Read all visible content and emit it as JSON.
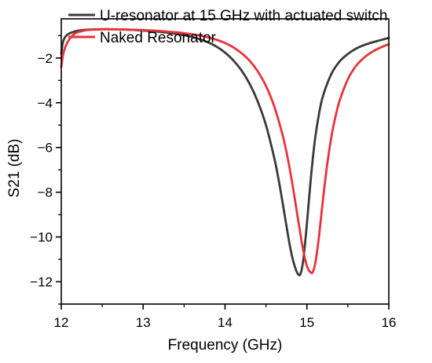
{
  "chart_data": {
    "type": "line",
    "title": "",
    "xlabel": "Frequency (GHz)",
    "ylabel": "S21 (dB)",
    "xlim": [
      12,
      16
    ],
    "ylim": [
      -13,
      -0.25
    ],
    "xticks": [
      12,
      13,
      14,
      15,
      16
    ],
    "xtick_labels": [
      "12",
      "13",
      "14",
      "15",
      "16"
    ],
    "yticks": [
      -2,
      -4,
      -6,
      -8,
      -10,
      -12
    ],
    "ytick_labels": [
      "−2",
      "−4",
      "−6",
      "−8",
      "−10",
      "−12"
    ],
    "grid": false,
    "legend_position": "top-right",
    "series": [
      {
        "name": "U-resonator at 15 GHz with actuated switch",
        "color": "#3a3a3a",
        "x": [
          12.0,
          12.02,
          12.05,
          12.1,
          12.2,
          12.3,
          12.4,
          12.5,
          12.6,
          12.7,
          12.8,
          12.9,
          13.0,
          13.1,
          13.2,
          13.3,
          13.4,
          13.5,
          13.6,
          13.7,
          13.8,
          13.9,
          14.0,
          14.1,
          14.2,
          14.3,
          14.4,
          14.5,
          14.6,
          14.65,
          14.7,
          14.75,
          14.8,
          14.85,
          14.9,
          14.93,
          14.96,
          15.0,
          15.05,
          15.1,
          15.15,
          15.2,
          15.3,
          15.4,
          15.5,
          15.6,
          15.7,
          15.8,
          15.9,
          16.0
        ],
        "y": [
          -1.8,
          -1.3,
          -1.05,
          -0.9,
          -0.78,
          -0.74,
          -0.72,
          -0.71,
          -0.71,
          -0.72,
          -0.73,
          -0.75,
          -0.77,
          -0.8,
          -0.83,
          -0.87,
          -0.92,
          -0.98,
          -1.06,
          -1.17,
          -1.31,
          -1.5,
          -1.76,
          -2.1,
          -2.55,
          -3.15,
          -3.95,
          -5.0,
          -6.45,
          -7.35,
          -8.4,
          -9.5,
          -10.55,
          -11.3,
          -11.7,
          -11.55,
          -10.9,
          -9.4,
          -7.3,
          -5.6,
          -4.45,
          -3.65,
          -2.7,
          -2.15,
          -1.82,
          -1.58,
          -1.42,
          -1.3,
          -1.2,
          -1.1
        ]
      },
      {
        "name": "Naked Resonator",
        "color": "#e8333a",
        "x": [
          12.0,
          12.02,
          12.05,
          12.1,
          12.15,
          12.2,
          12.3,
          12.4,
          12.5,
          12.6,
          12.7,
          12.8,
          12.9,
          13.0,
          13.1,
          13.2,
          13.3,
          13.4,
          13.5,
          13.6,
          13.7,
          13.8,
          13.9,
          14.0,
          14.1,
          14.2,
          14.3,
          14.4,
          14.5,
          14.6,
          14.7,
          14.75,
          14.8,
          14.85,
          14.9,
          14.95,
          15.0,
          15.05,
          15.08,
          15.11,
          15.15,
          15.2,
          15.25,
          15.3,
          15.35,
          15.4,
          15.5,
          15.6,
          15.7,
          15.8,
          15.9,
          16.0
        ],
        "y": [
          -2.4,
          -1.9,
          -1.5,
          -1.15,
          -0.95,
          -0.85,
          -0.76,
          -0.73,
          -0.72,
          -0.72,
          -0.72,
          -0.73,
          -0.74,
          -0.75,
          -0.77,
          -0.79,
          -0.82,
          -0.85,
          -0.89,
          -0.94,
          -1.0,
          -1.08,
          -1.19,
          -1.33,
          -1.52,
          -1.78,
          -2.12,
          -2.6,
          -3.25,
          -4.15,
          -5.4,
          -6.2,
          -7.15,
          -8.25,
          -9.4,
          -10.5,
          -11.3,
          -11.6,
          -11.5,
          -11.0,
          -9.9,
          -8.2,
          -6.7,
          -5.5,
          -4.6,
          -3.9,
          -2.95,
          -2.35,
          -1.98,
          -1.72,
          -1.53,
          -1.38
        ]
      }
    ]
  }
}
